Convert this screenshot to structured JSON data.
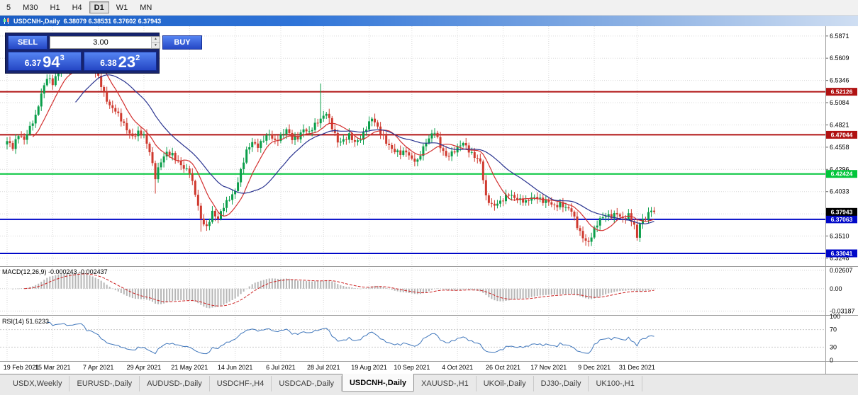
{
  "toolbar": {
    "timeframes": [
      "5",
      "M30",
      "H1",
      "H4",
      "D1",
      "W1",
      "MN"
    ],
    "active": "D1"
  },
  "title_bar": {
    "symbol": "USDCNH-,Daily",
    "ohlc": "6.38079 6.38531 6.37602 6.37943"
  },
  "trade_panel": {
    "sell_label": "SELL",
    "buy_label": "BUY",
    "volume": "3.00",
    "bid_prefix": "6.37",
    "bid_pips": "94",
    "bid_point": "3",
    "ask_prefix": "6.38",
    "ask_pips": "23",
    "ask_point": "2"
  },
  "chart_data": {
    "type": "candlestick",
    "symbol": "USDCNH-",
    "timeframe": "Daily",
    "n_candles": 228,
    "price_axis": {
      "top_price": 6.597,
      "bottom_price": 6.317,
      "ticks": [
        "6.5871",
        "6.5609",
        "6.5346",
        "6.5084",
        "6.4821",
        "6.4558",
        "6.4296",
        "6.4033",
        "6.3771",
        "6.3510",
        "6.3248"
      ]
    },
    "close_anchors": [
      [
        0,
        6.462
      ],
      [
        2,
        6.455
      ],
      [
        4,
        6.472
      ],
      [
        6,
        6.465
      ],
      [
        8,
        6.478
      ],
      [
        10,
        6.492
      ],
      [
        12,
        6.52
      ],
      [
        14,
        6.538
      ],
      [
        16,
        6.53
      ],
      [
        18,
        6.545
      ],
      [
        20,
        6.552
      ],
      [
        22,
        6.548
      ],
      [
        24,
        6.558
      ],
      [
        26,
        6.568
      ],
      [
        28,
        6.552
      ],
      [
        30,
        6.548
      ],
      [
        32,
        6.538
      ],
      [
        34,
        6.52
      ],
      [
        36,
        6.505
      ],
      [
        38,
        6.498
      ],
      [
        40,
        6.488
      ],
      [
        42,
        6.478
      ],
      [
        44,
        6.468
      ],
      [
        46,
        6.472
      ],
      [
        48,
        6.47
      ],
      [
        50,
        6.452
      ],
      [
        52,
        6.42
      ],
      [
        54,
        6.438
      ],
      [
        56,
        6.45
      ],
      [
        58,
        6.448
      ],
      [
        60,
        6.438
      ],
      [
        62,
        6.43
      ],
      [
        64,
        6.428
      ],
      [
        66,
        6.402
      ],
      [
        68,
        6.37
      ],
      [
        70,
        6.36
      ],
      [
        72,
        6.38
      ],
      [
        74,
        6.372
      ],
      [
        76,
        6.385
      ],
      [
        78,
        6.395
      ],
      [
        80,
        6.405
      ],
      [
        82,
        6.428
      ],
      [
        84,
        6.45
      ],
      [
        86,
        6.462
      ],
      [
        88,
        6.458
      ],
      [
        90,
        6.465
      ],
      [
        92,
        6.47
      ],
      [
        94,
        6.463
      ],
      [
        96,
        6.47
      ],
      [
        98,
        6.476
      ],
      [
        100,
        6.465
      ],
      [
        102,
        6.468
      ],
      [
        104,
        6.478
      ],
      [
        106,
        6.472
      ],
      [
        108,
        6.482
      ],
      [
        110,
        6.49
      ],
      [
        112,
        6.497
      ],
      [
        114,
        6.478
      ],
      [
        116,
        6.462
      ],
      [
        118,
        6.465
      ],
      [
        120,
        6.47
      ],
      [
        122,
        6.46
      ],
      [
        124,
        6.466
      ],
      [
        126,
        6.48
      ],
      [
        128,
        6.49
      ],
      [
        130,
        6.478
      ],
      [
        132,
        6.468
      ],
      [
        134,
        6.458
      ],
      [
        136,
        6.45
      ],
      [
        138,
        6.448
      ],
      [
        140,
        6.452
      ],
      [
        142,
        6.442
      ],
      [
        144,
        6.438
      ],
      [
        146,
        6.455
      ],
      [
        148,
        6.468
      ],
      [
        150,
        6.475
      ],
      [
        152,
        6.455
      ],
      [
        154,
        6.445
      ],
      [
        156,
        6.45
      ],
      [
        158,
        6.455
      ],
      [
        160,
        6.46
      ],
      [
        162,
        6.452
      ],
      [
        164,
        6.446
      ],
      [
        166,
        6.438
      ],
      [
        168,
        6.396
      ],
      [
        170,
        6.388
      ],
      [
        172,
        6.39
      ],
      [
        174,
        6.393
      ],
      [
        176,
        6.4
      ],
      [
        178,
        6.397
      ],
      [
        180,
        6.394
      ],
      [
        182,
        6.39
      ],
      [
        184,
        6.396
      ],
      [
        186,
        6.398
      ],
      [
        188,
        6.392
      ],
      [
        190,
        6.39
      ],
      [
        192,
        6.386
      ],
      [
        194,
        6.39
      ],
      [
        196,
        6.384
      ],
      [
        198,
        6.38
      ],
      [
        200,
        6.363
      ],
      [
        202,
        6.35
      ],
      [
        204,
        6.342
      ],
      [
        206,
        6.358
      ],
      [
        208,
        6.372
      ],
      [
        210,
        6.376
      ],
      [
        212,
        6.373
      ],
      [
        214,
        6.377
      ],
      [
        216,
        6.372
      ],
      [
        218,
        6.376
      ],
      [
        220,
        6.362
      ],
      [
        221,
        6.348
      ],
      [
        222,
        6.366
      ],
      [
        224,
        6.374
      ],
      [
        226,
        6.382
      ],
      [
        227,
        6.3794
      ]
    ],
    "wick_overrides": [
      {
        "i": 27,
        "high": 6.576
      },
      {
        "i": 52,
        "low": 6.401
      },
      {
        "i": 68,
        "low": 6.356
      },
      {
        "i": 110,
        "high": 6.531
      },
      {
        "i": 203,
        "low": 6.3395
      },
      {
        "i": 221,
        "low": 6.3455
      }
    ],
    "hlines": [
      {
        "price": 6.52126,
        "label": "6.52126",
        "color": "#b01212"
      },
      {
        "price": 6.47044,
        "label": "6.47044",
        "color": "#b01212"
      },
      {
        "price": 6.42424,
        "label": "6.42424",
        "color": "#00c53a"
      },
      {
        "price": 6.37063,
        "label": "6.37063",
        "color": "#0008c8"
      },
      {
        "price": 6.33041,
        "label": "6.33041",
        "color": "#0008c8"
      }
    ],
    "current_price": {
      "price": 6.37943,
      "label": "6.37943",
      "color": "#000000"
    },
    "ma_fast": {
      "period": 10,
      "color": "#d3302f"
    },
    "ma_slow": {
      "period": 25,
      "color": "#2a3490"
    },
    "bull_color": "#0a9e4a",
    "bear_color": "#cf3a2f",
    "x_labels": [
      {
        "text": "19 Feb 2021",
        "i": 0
      },
      {
        "text": "15 Mar 2021",
        "i": 16
      },
      {
        "text": "7 Apr 2021",
        "i": 32
      },
      {
        "text": "29 Apr 2021",
        "i": 48
      },
      {
        "text": "21 May 2021",
        "i": 64
      },
      {
        "text": "14 Jun 2021",
        "i": 80
      },
      {
        "text": "6 Jul 2021",
        "i": 96
      },
      {
        "text": "28 Jul 2021",
        "i": 111
      },
      {
        "text": "19 Aug 2021",
        "i": 127
      },
      {
        "text": "10 Sep 2021",
        "i": 142
      },
      {
        "text": "4 Oct 2021",
        "i": 158
      },
      {
        "text": "26 Oct 2021",
        "i": 174
      },
      {
        "text": "17 Nov 2021",
        "i": 190
      },
      {
        "text": "9 Dec 2021",
        "i": 206
      },
      {
        "text": "31 Dec 2021",
        "i": 221
      }
    ]
  },
  "macd_panel": {
    "header": "MACD(12,26,9) -0.000243 -0.002437",
    "fast": 12,
    "slow": 26,
    "signal": 9,
    "axis": [
      {
        "label": "0.02607",
        "value": 0.02607
      },
      {
        "label": "0.00",
        "value": 0
      },
      {
        "label": "-0.03187",
        "value": -0.03187
      }
    ],
    "hist_color": "#b6b6b6",
    "signal_color": "#cc2222"
  },
  "rsi_panel": {
    "header": "RSI(14) 51.6233",
    "period": 14,
    "value": "51.6233",
    "axis": [
      {
        "label": "100",
        "value": 100
      },
      {
        "label": "70",
        "value": 70
      },
      {
        "label": "30",
        "value": 30
      },
      {
        "label": "0",
        "value": 0
      }
    ],
    "levels": [
      70,
      30
    ],
    "line_color": "#3f76bb"
  },
  "tabs": {
    "items": [
      "USDX,Weekly",
      "EURUSD-,Daily",
      "AUDUSD-,Daily",
      "USDCHF-,H4",
      "USDCAD-,Daily",
      "USDCNH-,Daily",
      "XAUUSD-,H1",
      "UKOil-,Daily",
      "DJ30-,Daily",
      "UK100-,H1"
    ],
    "active": "USDCNH-,Daily"
  }
}
